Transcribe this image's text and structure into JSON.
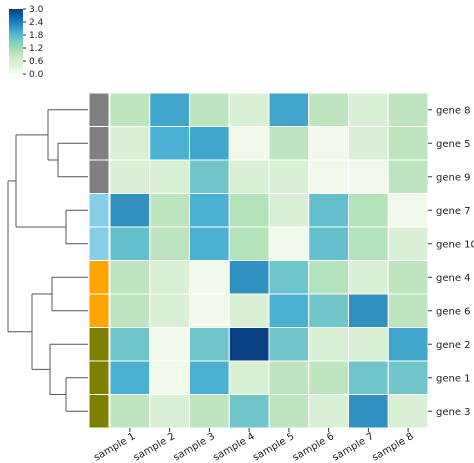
{
  "chart_data": {
    "type": "heatmap",
    "title": "",
    "columns": [
      "sample 1",
      "sample 2",
      "sample 3",
      "sample 4",
      "sample 5",
      "sample 6",
      "sample 7",
      "sample 8"
    ],
    "rows": [
      "gene 8",
      "gene 5",
      "gene 9",
      "gene 7",
      "gene 10",
      "gene 4",
      "gene 6",
      "gene 2",
      "gene 1",
      "gene 3"
    ],
    "values": [
      [
        0.9,
        2.0,
        0.9,
        0.5,
        2.0,
        0.9,
        0.5,
        0.9
      ],
      [
        0.5,
        1.9,
        2.0,
        0.1,
        0.9,
        0.1,
        0.5,
        0.9
      ],
      [
        0.5,
        0.5,
        1.6,
        0.5,
        0.5,
        0.1,
        0.1,
        0.9
      ],
      [
        2.2,
        0.9,
        1.9,
        1.0,
        0.5,
        1.7,
        1.0,
        0.1
      ],
      [
        1.7,
        0.9,
        1.9,
        1.0,
        0.1,
        1.7,
        1.0,
        0.5
      ],
      [
        0.9,
        0.5,
        0.1,
        2.2,
        1.6,
        1.0,
        0.5,
        0.9
      ],
      [
        0.9,
        0.5,
        0.1,
        0.5,
        1.9,
        1.6,
        2.2,
        0.9
      ],
      [
        1.6,
        0.1,
        1.6,
        3.0,
        1.6,
        0.5,
        0.5,
        2.0
      ],
      [
        1.9,
        0.1,
        1.9,
        0.5,
        0.9,
        0.9,
        1.6,
        1.6
      ],
      [
        0.9,
        0.5,
        0.9,
        1.6,
        0.9,
        0.5,
        2.2,
        0.5
      ]
    ],
    "row_colors": [
      "#808080",
      "#808080",
      "#808080",
      "#87ceeb",
      "#87ceeb",
      "#ffa500",
      "#ffa500",
      "#808000",
      "#808000",
      "#808000"
    ],
    "colorbar": {
      "ticks": [
        "0.0",
        "0.6",
        "1.2",
        "1.8",
        "2.4",
        "3.0"
      ],
      "vmin": 0,
      "vmax": 3.0,
      "colormap": [
        "#f7fcf0",
        "#e0f3db",
        "#ccebc5",
        "#a8ddb5",
        "#7bccc4",
        "#4eb3d3",
        "#2b8cbe",
        "#0868ac",
        "#084081"
      ]
    },
    "dendrogram": "row clustering tree on left"
  }
}
